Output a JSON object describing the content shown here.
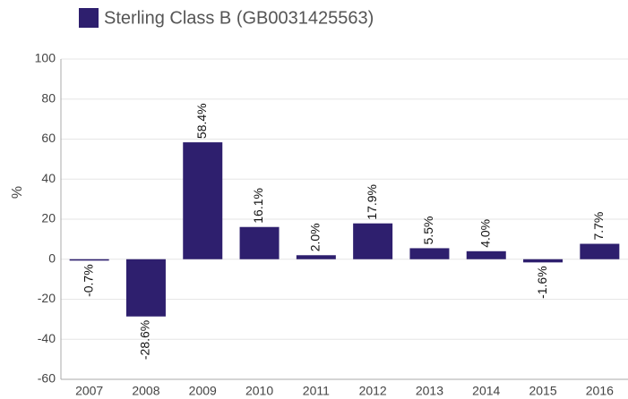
{
  "chart_data": {
    "type": "bar",
    "y_label": "%",
    "categories": [
      "2007",
      "2008",
      "2009",
      "2010",
      "2011",
      "2012",
      "2013",
      "2014",
      "2015",
      "2016"
    ],
    "series": [
      {
        "name": "Sterling Class B (GB0031425563)",
        "color": "#2e1f6e",
        "values": [
          -0.7,
          -28.6,
          58.4,
          16.1,
          2.0,
          17.9,
          5.5,
          4.0,
          -1.6,
          7.7
        ],
        "value_labels": [
          "-0.7%",
          "-28.6%",
          "58.4%",
          "16.1%",
          "2.0%",
          "17.9%",
          "5.5%",
          "4.0%",
          "-1.6%",
          "7.7%"
        ]
      }
    ],
    "ylim": [
      -60,
      100
    ],
    "yticks": [
      -60,
      -40,
      -20,
      0,
      20,
      40,
      60,
      80,
      100
    ],
    "grid": true,
    "legend": "top-left"
  }
}
